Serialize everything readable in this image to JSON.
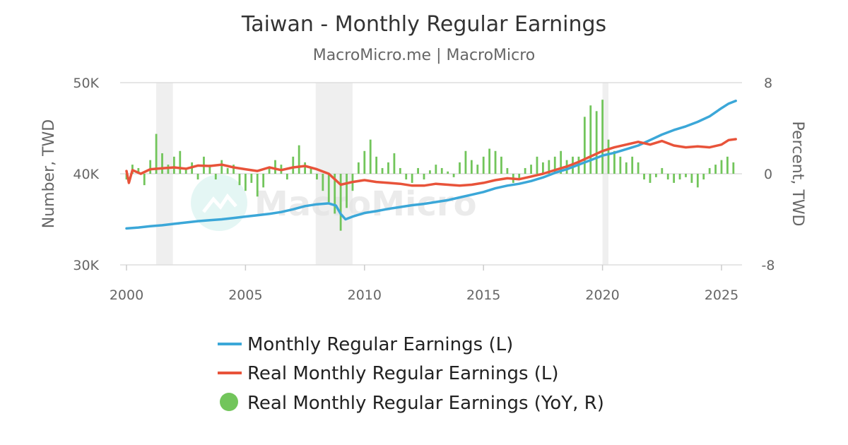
{
  "chart_data": {
    "type": "line",
    "title": "Taiwan - Monthly Regular Earnings",
    "subtitle": "MacroMicro.me | MacroMicro",
    "watermark": "MacroMicro",
    "y_left": {
      "label": "Number, TWD",
      "min": 30000,
      "max": 50000,
      "ticks": [
        30000,
        40000,
        50000
      ],
      "tick_labels": [
        "30K",
        "40K",
        "50K"
      ]
    },
    "y_right": {
      "label": "Percent, TWD",
      "min": -8,
      "max": 8,
      "ticks": [
        -8,
        0,
        8
      ],
      "tick_labels": [
        "-8",
        "0",
        "8"
      ]
    },
    "x": {
      "min": 2000,
      "max": 2025.9,
      "ticks": [
        2000,
        2005,
        2010,
        2015,
        2020,
        2025
      ],
      "tick_labels": [
        "2000",
        "2005",
        "2010",
        "2015",
        "2020",
        "2025"
      ]
    },
    "grid": true,
    "legend_position": "bottom",
    "recession_bands": [
      [
        2001.25,
        2001.95
      ],
      [
        2007.95,
        2009.5
      ],
      [
        2020.0,
        2020.25
      ]
    ],
    "series": [
      {
        "name": "Monthly Regular Earnings (L)",
        "axis": "left",
        "kind": "line",
        "color": "#3ba7d8",
        "points": [
          [
            2000.0,
            34000
          ],
          [
            2000.5,
            34100
          ],
          [
            2001.0,
            34250
          ],
          [
            2001.5,
            34350
          ],
          [
            2002.0,
            34500
          ],
          [
            2002.5,
            34650
          ],
          [
            2003.0,
            34800
          ],
          [
            2003.5,
            34900
          ],
          [
            2004.0,
            35000
          ],
          [
            2004.5,
            35150
          ],
          [
            2005.0,
            35300
          ],
          [
            2005.5,
            35450
          ],
          [
            2006.0,
            35600
          ],
          [
            2006.5,
            35800
          ],
          [
            2007.0,
            36100
          ],
          [
            2007.5,
            36450
          ],
          [
            2008.0,
            36650
          ],
          [
            2008.5,
            36750
          ],
          [
            2008.8,
            36500
          ],
          [
            2009.0,
            35600
          ],
          [
            2009.2,
            35000
          ],
          [
            2009.5,
            35300
          ],
          [
            2010.0,
            35700
          ],
          [
            2010.5,
            35900
          ],
          [
            2011.0,
            36150
          ],
          [
            2011.5,
            36350
          ],
          [
            2012.0,
            36550
          ],
          [
            2012.5,
            36700
          ],
          [
            2013.0,
            36900
          ],
          [
            2013.5,
            37100
          ],
          [
            2014.0,
            37400
          ],
          [
            2014.5,
            37700
          ],
          [
            2015.0,
            38000
          ],
          [
            2015.5,
            38400
          ],
          [
            2016.0,
            38700
          ],
          [
            2016.5,
            38900
          ],
          [
            2017.0,
            39200
          ],
          [
            2017.5,
            39600
          ],
          [
            2018.0,
            40100
          ],
          [
            2018.5,
            40500
          ],
          [
            2019.0,
            41000
          ],
          [
            2019.5,
            41500
          ],
          [
            2020.0,
            42000
          ],
          [
            2020.5,
            42300
          ],
          [
            2021.0,
            42700
          ],
          [
            2021.5,
            43100
          ],
          [
            2022.0,
            43700
          ],
          [
            2022.5,
            44300
          ],
          [
            2023.0,
            44800
          ],
          [
            2023.5,
            45200
          ],
          [
            2024.0,
            45700
          ],
          [
            2024.5,
            46300
          ],
          [
            2025.0,
            47200
          ],
          [
            2025.3,
            47700
          ],
          [
            2025.6,
            48000
          ]
        ]
      },
      {
        "name": "Real Monthly Regular Earnings (L)",
        "axis": "left",
        "kind": "line",
        "color": "#e8533a",
        "points": [
          [
            2000.0,
            40300
          ],
          [
            2000.1,
            39000
          ],
          [
            2000.25,
            40400
          ],
          [
            2000.6,
            40000
          ],
          [
            2001.0,
            40500
          ],
          [
            2001.5,
            40600
          ],
          [
            2002.0,
            40700
          ],
          [
            2002.5,
            40550
          ],
          [
            2003.0,
            40900
          ],
          [
            2003.5,
            40850
          ],
          [
            2004.0,
            41000
          ],
          [
            2004.5,
            40700
          ],
          [
            2005.0,
            40500
          ],
          [
            2005.5,
            40300
          ],
          [
            2006.0,
            40700
          ],
          [
            2006.5,
            40400
          ],
          [
            2007.0,
            40700
          ],
          [
            2007.5,
            40850
          ],
          [
            2008.0,
            40500
          ],
          [
            2008.5,
            40000
          ],
          [
            2009.0,
            38800
          ],
          [
            2009.5,
            39100
          ],
          [
            2010.0,
            39300
          ],
          [
            2010.5,
            39100
          ],
          [
            2011.0,
            39000
          ],
          [
            2011.5,
            38900
          ],
          [
            2012.0,
            38700
          ],
          [
            2012.5,
            38700
          ],
          [
            2013.0,
            38900
          ],
          [
            2013.5,
            38800
          ],
          [
            2014.0,
            38700
          ],
          [
            2014.5,
            38800
          ],
          [
            2015.0,
            39000
          ],
          [
            2015.5,
            39300
          ],
          [
            2016.0,
            39500
          ],
          [
            2016.5,
            39400
          ],
          [
            2017.0,
            39700
          ],
          [
            2017.5,
            40000
          ],
          [
            2018.0,
            40400
          ],
          [
            2018.5,
            40800
          ],
          [
            2019.0,
            41300
          ],
          [
            2019.5,
            41900
          ],
          [
            2020.0,
            42500
          ],
          [
            2020.5,
            42900
          ],
          [
            2021.0,
            43200
          ],
          [
            2021.5,
            43500
          ],
          [
            2022.0,
            43200
          ],
          [
            2022.5,
            43600
          ],
          [
            2023.0,
            43100
          ],
          [
            2023.5,
            42900
          ],
          [
            2024.0,
            43000
          ],
          [
            2024.5,
            42900
          ],
          [
            2025.0,
            43200
          ],
          [
            2025.3,
            43700
          ],
          [
            2025.6,
            43800
          ]
        ]
      },
      {
        "name": "Real Monthly Regular Earnings (YoY, R)",
        "axis": "right",
        "kind": "bar",
        "color": "#72c55b",
        "points": [
          [
            2000.0,
            -0.5
          ],
          [
            2000.25,
            0.8
          ],
          [
            2000.5,
            0.5
          ],
          [
            2000.75,
            -1.0
          ],
          [
            2001.0,
            1.2
          ],
          [
            2001.25,
            3.5
          ],
          [
            2001.5,
            1.8
          ],
          [
            2001.75,
            0.8
          ],
          [
            2002.0,
            1.5
          ],
          [
            2002.25,
            2.0
          ],
          [
            2002.5,
            0.5
          ],
          [
            2002.75,
            1.0
          ],
          [
            2003.0,
            -0.5
          ],
          [
            2003.25,
            1.5
          ],
          [
            2003.5,
            0.8
          ],
          [
            2003.75,
            -0.5
          ],
          [
            2004.0,
            1.2
          ],
          [
            2004.25,
            0.5
          ],
          [
            2004.5,
            0.8
          ],
          [
            2004.75,
            -1.0
          ],
          [
            2005.0,
            -1.5
          ],
          [
            2005.25,
            -0.8
          ],
          [
            2005.5,
            -2.0
          ],
          [
            2005.75,
            -1.2
          ],
          [
            2006.0,
            0.5
          ],
          [
            2006.25,
            1.2
          ],
          [
            2006.5,
            0.8
          ],
          [
            2006.75,
            -0.5
          ],
          [
            2007.0,
            1.5
          ],
          [
            2007.25,
            2.5
          ],
          [
            2007.5,
            1.0
          ],
          [
            2007.75,
            0.5
          ],
          [
            2008.0,
            -0.5
          ],
          [
            2008.25,
            -1.5
          ],
          [
            2008.5,
            -2.5
          ],
          [
            2008.75,
            -3.5
          ],
          [
            2009.0,
            -5.0
          ],
          [
            2009.25,
            -3.0
          ],
          [
            2009.5,
            -1.5
          ],
          [
            2009.75,
            1.0
          ],
          [
            2010.0,
            2.0
          ],
          [
            2010.25,
            3.0
          ],
          [
            2010.5,
            1.5
          ],
          [
            2010.75,
            0.5
          ],
          [
            2011.0,
            1.0
          ],
          [
            2011.25,
            1.8
          ],
          [
            2011.5,
            0.5
          ],
          [
            2011.75,
            -0.5
          ],
          [
            2012.0,
            -0.8
          ],
          [
            2012.25,
            0.5
          ],
          [
            2012.5,
            -0.5
          ],
          [
            2012.75,
            0.3
          ],
          [
            2013.0,
            0.8
          ],
          [
            2013.25,
            0.5
          ],
          [
            2013.5,
            0.2
          ],
          [
            2013.75,
            -0.3
          ],
          [
            2014.0,
            1.0
          ],
          [
            2014.25,
            2.0
          ],
          [
            2014.5,
            1.2
          ],
          [
            2014.75,
            0.8
          ],
          [
            2015.0,
            1.5
          ],
          [
            2015.25,
            2.2
          ],
          [
            2015.5,
            2.0
          ],
          [
            2015.75,
            1.5
          ],
          [
            2016.0,
            0.5
          ],
          [
            2016.25,
            -0.8
          ],
          [
            2016.5,
            -0.5
          ],
          [
            2016.75,
            0.5
          ],
          [
            2017.0,
            0.8
          ],
          [
            2017.25,
            1.5
          ],
          [
            2017.5,
            1.0
          ],
          [
            2017.75,
            1.2
          ],
          [
            2018.0,
            1.5
          ],
          [
            2018.25,
            2.0
          ],
          [
            2018.5,
            1.2
          ],
          [
            2018.75,
            1.5
          ],
          [
            2019.0,
            1.5
          ],
          [
            2019.25,
            5.0
          ],
          [
            2019.5,
            6.0
          ],
          [
            2019.75,
            5.5
          ],
          [
            2020.0,
            6.5
          ],
          [
            2020.25,
            3.0
          ],
          [
            2020.5,
            2.0
          ],
          [
            2020.75,
            1.5
          ],
          [
            2021.0,
            1.0
          ],
          [
            2021.25,
            1.5
          ],
          [
            2021.5,
            1.0
          ],
          [
            2021.75,
            -0.5
          ],
          [
            2022.0,
            -0.8
          ],
          [
            2022.25,
            -0.3
          ],
          [
            2022.5,
            0.5
          ],
          [
            2022.75,
            -0.5
          ],
          [
            2023.0,
            -0.8
          ],
          [
            2023.25,
            -0.5
          ],
          [
            2023.5,
            -0.3
          ],
          [
            2023.75,
            -0.8
          ],
          [
            2024.0,
            -1.2
          ],
          [
            2024.25,
            -0.5
          ],
          [
            2024.5,
            0.5
          ],
          [
            2024.75,
            0.8
          ],
          [
            2025.0,
            1.2
          ],
          [
            2025.25,
            1.5
          ],
          [
            2025.5,
            1.0
          ]
        ]
      }
    ]
  }
}
